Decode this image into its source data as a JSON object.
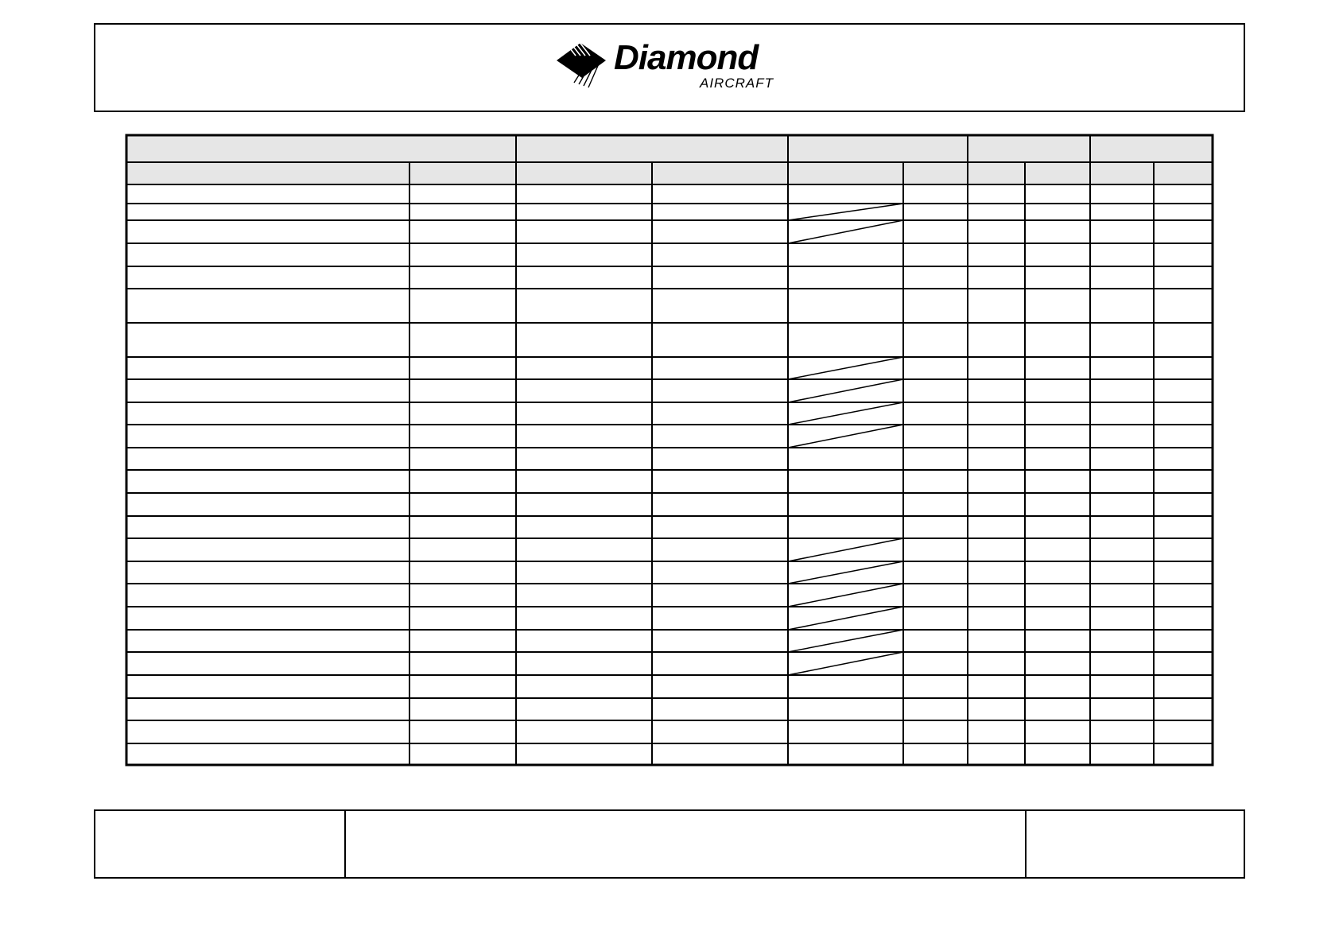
{
  "logo": {
    "brand": "Diamond",
    "subtitle": "AIRCRAFT",
    "icon": "diamond-logo-icon"
  },
  "colors": {
    "header_fill": "#e6e6e6",
    "line": "#000000"
  },
  "table": {
    "group_header_spans": [
      2,
      2,
      2,
      2,
      2
    ],
    "column_count": 10,
    "row_count": 25,
    "diagonal_cells_column": 5,
    "diagonal_rows": [
      2,
      3,
      8,
      9,
      10,
      11,
      16,
      17,
      18,
      19,
      20,
      21
    ]
  },
  "footer": {
    "cells": 3
  }
}
